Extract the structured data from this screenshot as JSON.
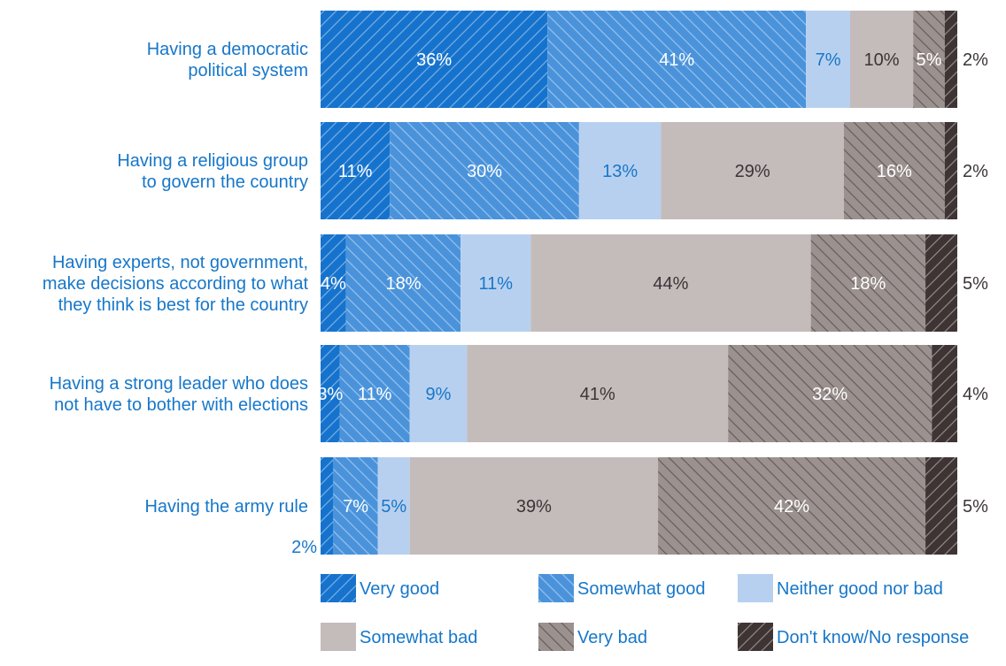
{
  "chart_data": {
    "type": "bar",
    "orientation": "horizontal",
    "stacked": true,
    "unit": "%",
    "categories": [
      [
        "Having a democratic",
        "political system"
      ],
      [
        "Having a religious group",
        "to govern the country"
      ],
      [
        "Having experts, not government,",
        "make decisions according to what",
        "they think is best for the country"
      ],
      [
        "Having a strong leader who does",
        "not have to bother with elections"
      ],
      [
        "Having the army rule"
      ]
    ],
    "series": [
      {
        "name": "Very good",
        "values": [
          36,
          11,
          4,
          3,
          2
        ],
        "color": "#1673cd",
        "hatch": "forward"
      },
      {
        "name": "Somewhat good",
        "values": [
          41,
          30,
          18,
          11,
          7
        ],
        "color": "#4a93db",
        "hatch": "back"
      },
      {
        "name": "Neither good nor bad",
        "values": [
          7,
          13,
          11,
          9,
          5
        ],
        "color": "#b8d0ef",
        "hatch": "none"
      },
      {
        "name": "Somewhat bad",
        "values": [
          10,
          29,
          44,
          41,
          39
        ],
        "color": "#c4bbbb",
        "hatch": "none"
      },
      {
        "name": "Very bad",
        "values": [
          5,
          16,
          18,
          32,
          42
        ],
        "color": "#9b918f",
        "hatch": "back"
      },
      {
        "name": "Don't know/No response",
        "values": [
          2,
          2,
          5,
          4,
          5
        ],
        "color": "#3f3434",
        "hatch": "forward"
      }
    ],
    "value_labels": [
      [
        "36%",
        "41%",
        "7%",
        "10%",
        "5%",
        "2%"
      ],
      [
        "11%",
        "30%",
        "13%",
        "29%",
        "16%",
        "2%"
      ],
      [
        "4%",
        "18%",
        "11%",
        "44%",
        "18%",
        "5%"
      ],
      [
        "3%",
        "11%",
        "9%",
        "41%",
        "32%",
        "4%"
      ],
      [
        "2%",
        "7%",
        "5%",
        "39%",
        "42%",
        "5%"
      ]
    ],
    "label_colors": [
      "#ffffff",
      "#ffffff",
      "#1777c9",
      "#3a3536",
      "#ffffff",
      "#3a3536"
    ],
    "legend_position": "bottom",
    "grid": false
  }
}
